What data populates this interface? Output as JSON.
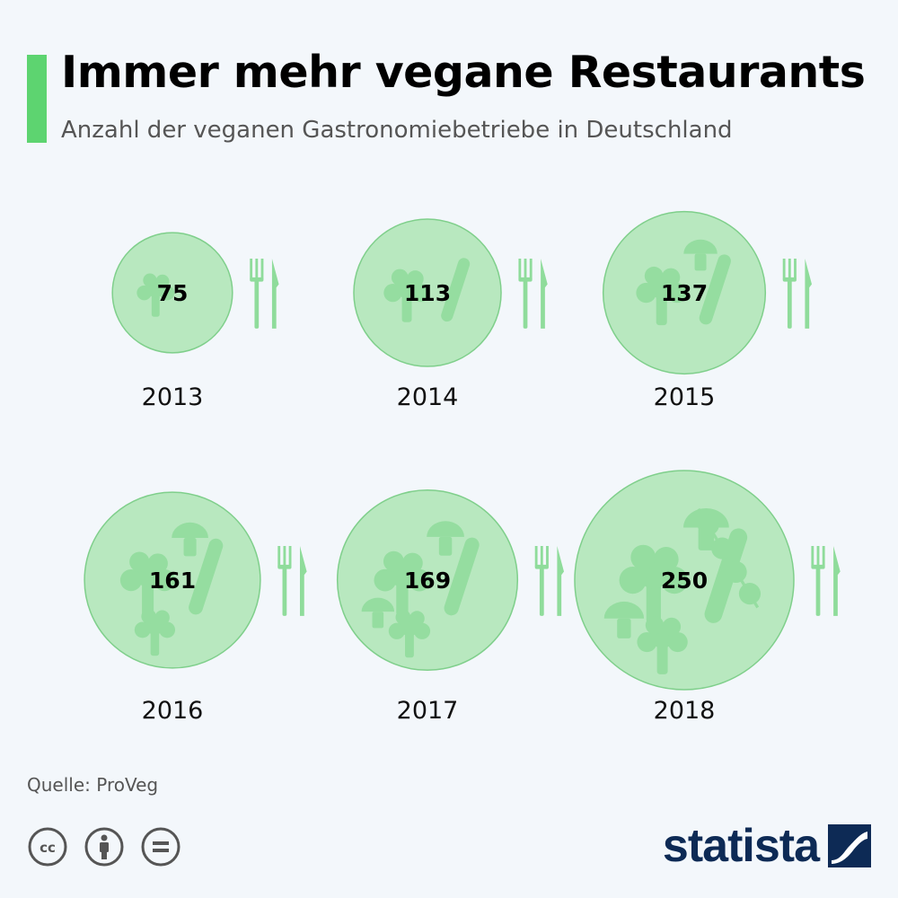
{
  "header": {
    "title": "Immer mehr vegane Restaurants",
    "subtitle": "Anzahl der veganen Gastronomiebetriebe in Deutschland"
  },
  "footer": {
    "source": "Quelle: ProVeg",
    "brand": "statista",
    "license_icons": [
      "creative-commons-icon",
      "attribution-icon",
      "no-derivatives-icon"
    ]
  },
  "colors": {
    "accent": "#5dd470",
    "plate_fill": "#b8e8bf",
    "plate_stroke": "#7fcf8b",
    "veg": "#8fdc9b",
    "cutlery": "#8fdc9b",
    "brand": "#0d2a55"
  },
  "chart_data": {
    "type": "bubble",
    "title": "Immer mehr vegane Restaurants",
    "subtitle": "Anzahl der veganen Gastronomiebetriebe in Deutschland",
    "categories": [
      "2013",
      "2014",
      "2015",
      "2016",
      "2017",
      "2018"
    ],
    "values": [
      75,
      113,
      137,
      161,
      169,
      250
    ],
    "xlabel": "",
    "ylabel": "",
    "legend": "none",
    "grid": false
  }
}
